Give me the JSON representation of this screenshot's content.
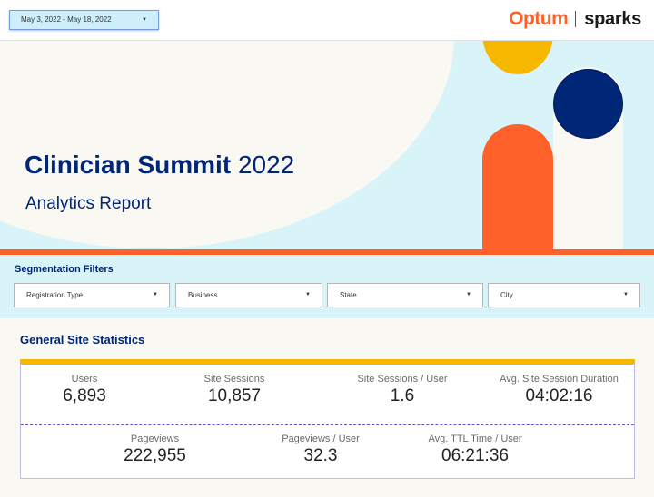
{
  "header": {
    "date_range": "May 3, 2022 - May 18, 2022",
    "logo_primary": "Optum",
    "logo_secondary": "sparks"
  },
  "hero": {
    "title_bold": "Clinician Summit",
    "title_year": "2022",
    "subtitle": "Analytics Report"
  },
  "filters": {
    "heading": "Segmentation Filters",
    "items": [
      {
        "label": "Registration Type"
      },
      {
        "label": "Business"
      },
      {
        "label": "State"
      },
      {
        "label": "City"
      }
    ]
  },
  "stats": {
    "heading": "General Site Statistics",
    "row1": [
      {
        "label": "Users",
        "value": "6,893"
      },
      {
        "label": "Site Sessions",
        "value": "10,857"
      },
      {
        "label": "Site Sessions / User",
        "value": "1.6"
      },
      {
        "label": "Avg. Site Session Duration",
        "value": "04:02:16"
      }
    ],
    "row2": [
      {
        "label": "Pageviews",
        "value": "222,955"
      },
      {
        "label": "Pageviews / User",
        "value": "32.3"
      },
      {
        "label": "Avg. TTL Time / User",
        "value": "06:21:36"
      }
    ]
  },
  "colors": {
    "navy": "#002677",
    "orange": "#ff612b",
    "yellow": "#f5b700",
    "light_cyan": "#d8f4f9",
    "cream": "#faf8f2"
  }
}
